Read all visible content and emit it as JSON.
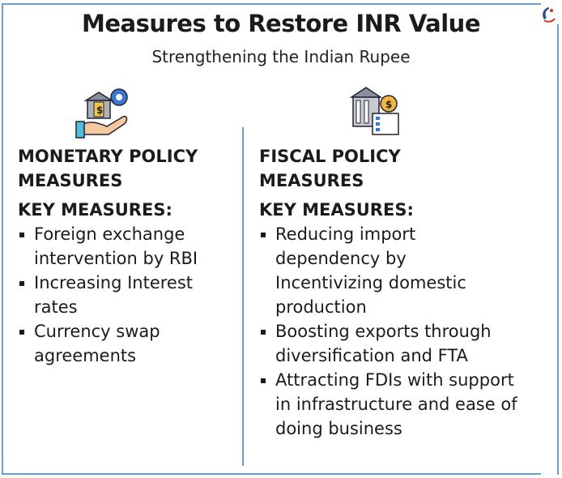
{
  "title": "Measures to Restore INR Value",
  "subtitle": "Strengthening the Indian Rupee",
  "left": {
    "icon": "hand-bank-gear-icon",
    "heading": "MONETARY POLICY MEASURES",
    "key_label": "KEY MEASURES:",
    "items": [
      "Foreign exchange intervention by RBI",
      "Increasing Interest rates",
      "Currency swap agreements"
    ]
  },
  "right": {
    "icon": "bank-moneybag-checklist-icon",
    "heading": "FISCAL POLICY MEASURES",
    "key_label": "KEY MEASURES:",
    "items": [
      "Reducing import dependency by Incentivizing domestic production",
      "Boosting exports through diversification and FTA",
      "Attracting FDIs with support in infrastructure and ease of doing business"
    ]
  },
  "colors": {
    "border": "#6d9ccf",
    "text": "#1b1b1b"
  }
}
